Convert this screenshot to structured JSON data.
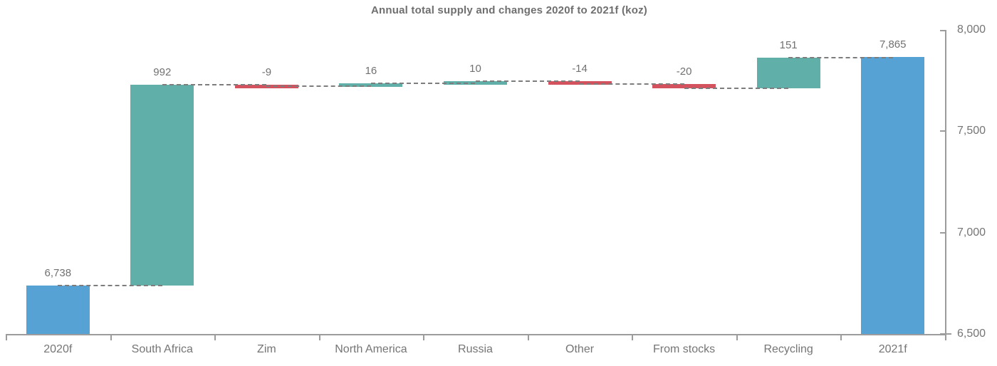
{
  "title": "Annual total supply and changes 2020f to 2021f (koz)",
  "colors": {
    "total_bar": "#57a2d5",
    "increase_bar": "#61afa9",
    "decrease_bar": "#d4525e",
    "axis": "#9c9c9c",
    "text": "#757575",
    "connector": "#7d7d7d"
  },
  "chart_data": {
    "type": "bar",
    "subtype": "waterfall",
    "title": "Annual total supply and changes 2020f to 2021f (koz)",
    "categories": [
      "2020f",
      "South Africa",
      "Zim",
      "North America",
      "Russia",
      "Other",
      "From stocks",
      "Recycling",
      "2021f"
    ],
    "values": [
      6738,
      992,
      -9,
      16,
      10,
      -14,
      -20,
      151,
      7865
    ],
    "value_labels": [
      "6,738",
      "992",
      "-9",
      "16",
      "10",
      "-14",
      "-20",
      "151",
      "7,865"
    ],
    "bar_roles": [
      "total",
      "increase",
      "decrease",
      "increase",
      "increase",
      "decrease",
      "decrease",
      "increase",
      "total"
    ],
    "cumulative_levels": [
      6738,
      7730,
      7721,
      7737,
      7747,
      7733,
      7713,
      7864,
      7865
    ],
    "ylim": [
      6500,
      8000
    ],
    "yticks": [
      6500,
      7000,
      7500,
      8000
    ],
    "ytick_labels": [
      "6,500",
      "7,000",
      "7,500",
      "8,000"
    ],
    "y_axis_side": "right",
    "xlabel": "",
    "ylabel": "",
    "grid": false,
    "legend": "none",
    "connector_style": "dashed"
  }
}
